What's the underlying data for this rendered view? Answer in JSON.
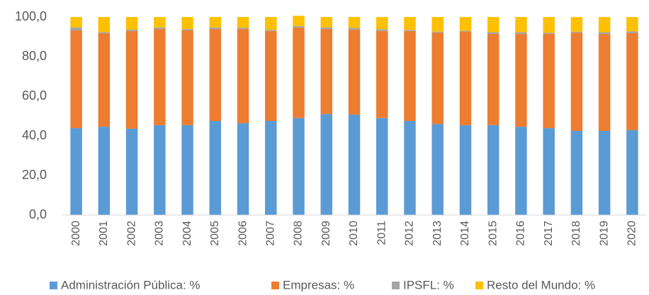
{
  "chart_data": {
    "type": "bar",
    "stacked": true,
    "categories": [
      "2000",
      "2001",
      "2002",
      "2003",
      "2004",
      "2005",
      "2006",
      "2007",
      "2008",
      "2009",
      "2010",
      "2011",
      "2012",
      "2013",
      "2014",
      "2015",
      "2016",
      "2017",
      "2018",
      "2019",
      "2020"
    ],
    "series": [
      {
        "name": "Administración Pública: %",
        "color": "#5b9bd5",
        "values": [
          43.9,
          44.6,
          43.6,
          45.4,
          45.4,
          47.5,
          46.4,
          47.5,
          49.0,
          51.0,
          50.7,
          49.0,
          47.5,
          46.0,
          45.4,
          45.4,
          44.6,
          43.9,
          42.5,
          42.5,
          42.9
        ]
      },
      {
        "name": "Empresas: %",
        "color": "#ed7d31",
        "values": [
          49.3,
          47.2,
          49.3,
          48.5,
          47.8,
          46.4,
          47.5,
          45.4,
          45.6,
          42.9,
          42.9,
          43.9,
          45.4,
          46.1,
          47.1,
          46.0,
          46.8,
          47.5,
          49.6,
          48.9,
          48.9
        ]
      },
      {
        "name": "IPSFL: %",
        "color": "#a5a5a5",
        "values": [
          1.5,
          0.6,
          0.7,
          0.8,
          0.7,
          0.8,
          0.7,
          0.6,
          0.8,
          0.8,
          0.9,
          0.9,
          0.6,
          0.5,
          0.5,
          0.9,
          0.9,
          0.6,
          0.5,
          0.9,
          0.9
        ]
      },
      {
        "name": "Resto del Mundo: %",
        "color": "#ffc000",
        "values": [
          5.3,
          7.6,
          6.4,
          5.3,
          6.1,
          5.3,
          5.4,
          6.5,
          5.2,
          5.3,
          5.5,
          6.2,
          6.5,
          7.4,
          7.0,
          7.7,
          7.7,
          8.0,
          7.4,
          7.7,
          7.3
        ]
      }
    ],
    "ylim": [
      0,
      100
    ],
    "yticks": [
      {
        "value": 0,
        "label": "0,0"
      },
      {
        "value": 20,
        "label": "20,0"
      },
      {
        "value": 40,
        "label": "40,0"
      },
      {
        "value": 60,
        "label": "60,0"
      },
      {
        "value": 80,
        "label": "80,0"
      },
      {
        "value": 100,
        "label": "100,0"
      }
    ],
    "grid": false,
    "legend": "bottom"
  }
}
